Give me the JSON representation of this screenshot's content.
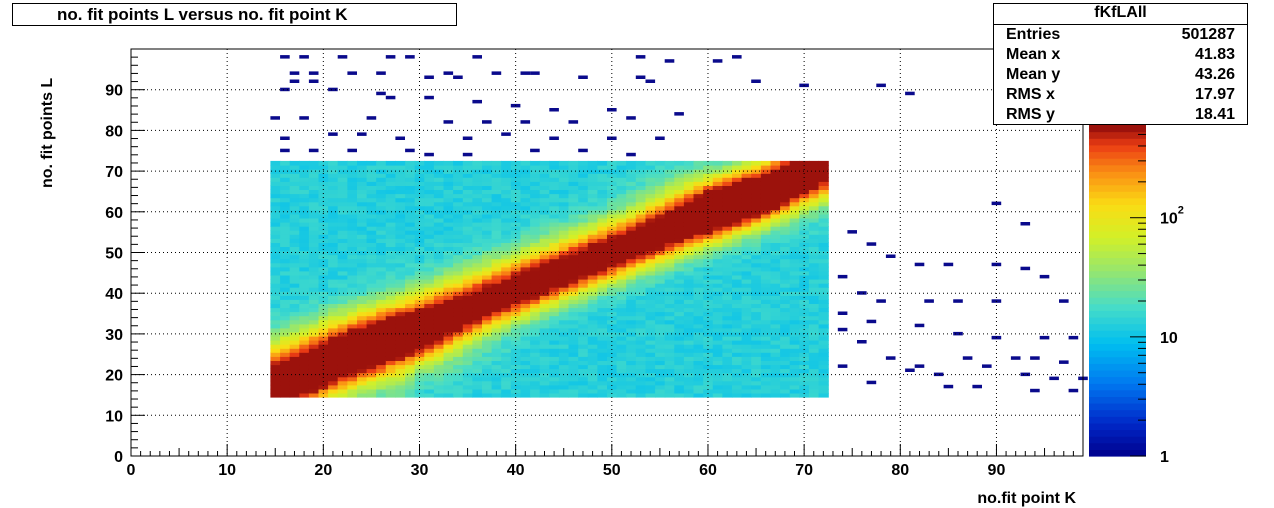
{
  "histogram": {
    "title": "no. fit points L versus no. fit point K",
    "stats": {
      "name": "fKfLAll",
      "rows": [
        {
          "label": "Entries",
          "value": "501287"
        },
        {
          "label": "Mean x",
          "value": "41.83"
        },
        {
          "label": "Mean y",
          "value": "43.26"
        },
        {
          "label": "RMS x",
          "value": "17.97"
        },
        {
          "label": "RMS y",
          "value": "18.41"
        }
      ]
    }
  },
  "chart_data": {
    "type": "heatmap",
    "title": "no. fit points L versus no. fit point K",
    "xlabel": "no.fit point K",
    "ylabel": "no. fit points  L",
    "xlim": [
      0,
      99
    ],
    "ylim": [
      0,
      100
    ],
    "x_ticks": [
      "0",
      "10",
      "20",
      "30",
      "40",
      "50",
      "60",
      "70",
      "80",
      "90"
    ],
    "y_ticks": [
      "0",
      "10",
      "20",
      "30",
      "40",
      "50",
      "60",
      "70",
      "80",
      "90"
    ],
    "grid": true,
    "colorbar": {
      "scale": "log",
      "range": [
        1,
        600
      ],
      "tick_labels": [
        "1",
        "10",
        "10^2"
      ]
    },
    "dense_region": {
      "x_range": [
        14.5,
        72.5
      ],
      "y_range": [
        14.5,
        72.5
      ],
      "ridges": [
        {
          "from": [
            15,
            16
          ],
          "peak": [
            27,
            27
          ],
          "to": [
            72,
            70
          ]
        },
        {
          "from": [
            15,
            24
          ],
          "peak": [
            62,
            62
          ],
          "to": [
            72,
            72
          ]
        }
      ]
    },
    "sparse_cells": [
      [
        16,
        98
      ],
      [
        18,
        98
      ],
      [
        22,
        98
      ],
      [
        27,
        98
      ],
      [
        29,
        98
      ],
      [
        36,
        98
      ],
      [
        53,
        98
      ],
      [
        56,
        97
      ],
      [
        61,
        97
      ],
      [
        63,
        98
      ],
      [
        17,
        94
      ],
      [
        19,
        94
      ],
      [
        23,
        94
      ],
      [
        26,
        94
      ],
      [
        33,
        94
      ],
      [
        34,
        93
      ],
      [
        38,
        94
      ],
      [
        41,
        94
      ],
      [
        42,
        94
      ],
      [
        47,
        93
      ],
      [
        17,
        92
      ],
      [
        19,
        92
      ],
      [
        31,
        93
      ],
      [
        53,
        93
      ],
      [
        54,
        92
      ],
      [
        65,
        92
      ],
      [
        70,
        91
      ],
      [
        78,
        91
      ],
      [
        81,
        89
      ],
      [
        16,
        90
      ],
      [
        21,
        90
      ],
      [
        26,
        89
      ],
      [
        27,
        88
      ],
      [
        31,
        88
      ],
      [
        36,
        87
      ],
      [
        40,
        86
      ],
      [
        44,
        85
      ],
      [
        50,
        85
      ],
      [
        15,
        83
      ],
      [
        18,
        83
      ],
      [
        25,
        83
      ],
      [
        33,
        82
      ],
      [
        37,
        82
      ],
      [
        41,
        82
      ],
      [
        46,
        82
      ],
      [
        52,
        83
      ],
      [
        57,
        84
      ],
      [
        16,
        78
      ],
      [
        21,
        79
      ],
      [
        24,
        79
      ],
      [
        28,
        78
      ],
      [
        35,
        78
      ],
      [
        39,
        79
      ],
      [
        44,
        78
      ],
      [
        50,
        78
      ],
      [
        55,
        78
      ],
      [
        16,
        75
      ],
      [
        19,
        75
      ],
      [
        23,
        75
      ],
      [
        29,
        75
      ],
      [
        31,
        74
      ],
      [
        35,
        74
      ],
      [
        42,
        75
      ],
      [
        47,
        75
      ],
      [
        52,
        74
      ],
      [
        75,
        55
      ],
      [
        77,
        52
      ],
      [
        79,
        49
      ],
      [
        82,
        47
      ],
      [
        85,
        47
      ],
      [
        90,
        47
      ],
      [
        93,
        46
      ],
      [
        95,
        44
      ],
      [
        74,
        44
      ],
      [
        76,
        40
      ],
      [
        78,
        38
      ],
      [
        83,
        38
      ],
      [
        86,
        38
      ],
      [
        90,
        38
      ],
      [
        97,
        38
      ],
      [
        74,
        35
      ],
      [
        77,
        33
      ],
      [
        82,
        32
      ],
      [
        86,
        30
      ],
      [
        90,
        29
      ],
      [
        95,
        29
      ],
      [
        98,
        29
      ],
      [
        74,
        31
      ],
      [
        76,
        28
      ],
      [
        79,
        24
      ],
      [
        82,
        22
      ],
      [
        84,
        20
      ],
      [
        87,
        24
      ],
      [
        89,
        22
      ],
      [
        92,
        24
      ],
      [
        94,
        24
      ],
      [
        97,
        23
      ],
      [
        99,
        19
      ],
      [
        74,
        22
      ],
      [
        77,
        18
      ],
      [
        81,
        21
      ],
      [
        85,
        17
      ],
      [
        88,
        17
      ],
      [
        93,
        20
      ],
      [
        96,
        19
      ],
      [
        98,
        16
      ],
      [
        94,
        16
      ],
      [
        90,
        62
      ],
      [
        93,
        57
      ]
    ]
  }
}
